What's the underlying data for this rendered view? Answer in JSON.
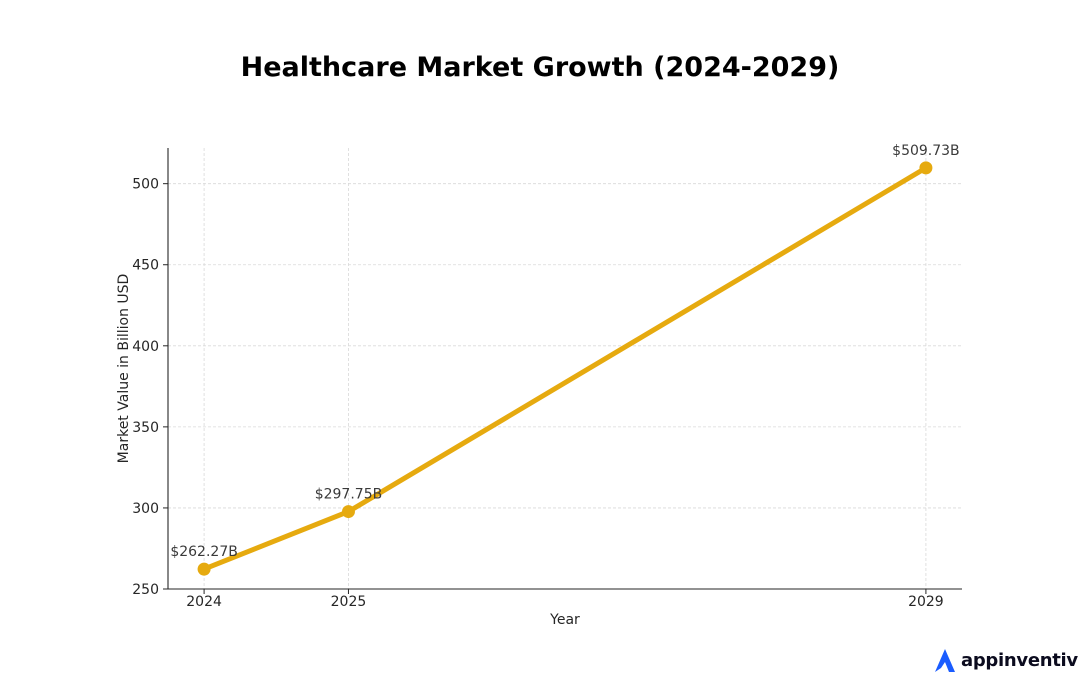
{
  "chart_data": {
    "type": "line",
    "title": "Healthcare Market Growth (2024-2029)",
    "xlabel": "Year",
    "ylabel": "Market Value in Billion USD",
    "x": [
      2024,
      2025,
      2029
    ],
    "x_tick_labels": [
      "2024",
      "2025",
      "2029"
    ],
    "values": [
      262.27,
      297.75,
      509.73
    ],
    "data_labels": [
      "$262.27B",
      "$297.75B",
      "$509.73B"
    ],
    "y_ticks": [
      250,
      300,
      350,
      400,
      450,
      500
    ],
    "xlim": [
      2023.75,
      2029.25
    ],
    "ylim": [
      250,
      522
    ],
    "grid": true,
    "line_color": "#e6aa0f",
    "grid_color": "#d9d9d9"
  },
  "brand": {
    "name": "appinventiv",
    "logo_icon": "appinventiv-logo-icon",
    "logo_color": "#1a5cff"
  }
}
